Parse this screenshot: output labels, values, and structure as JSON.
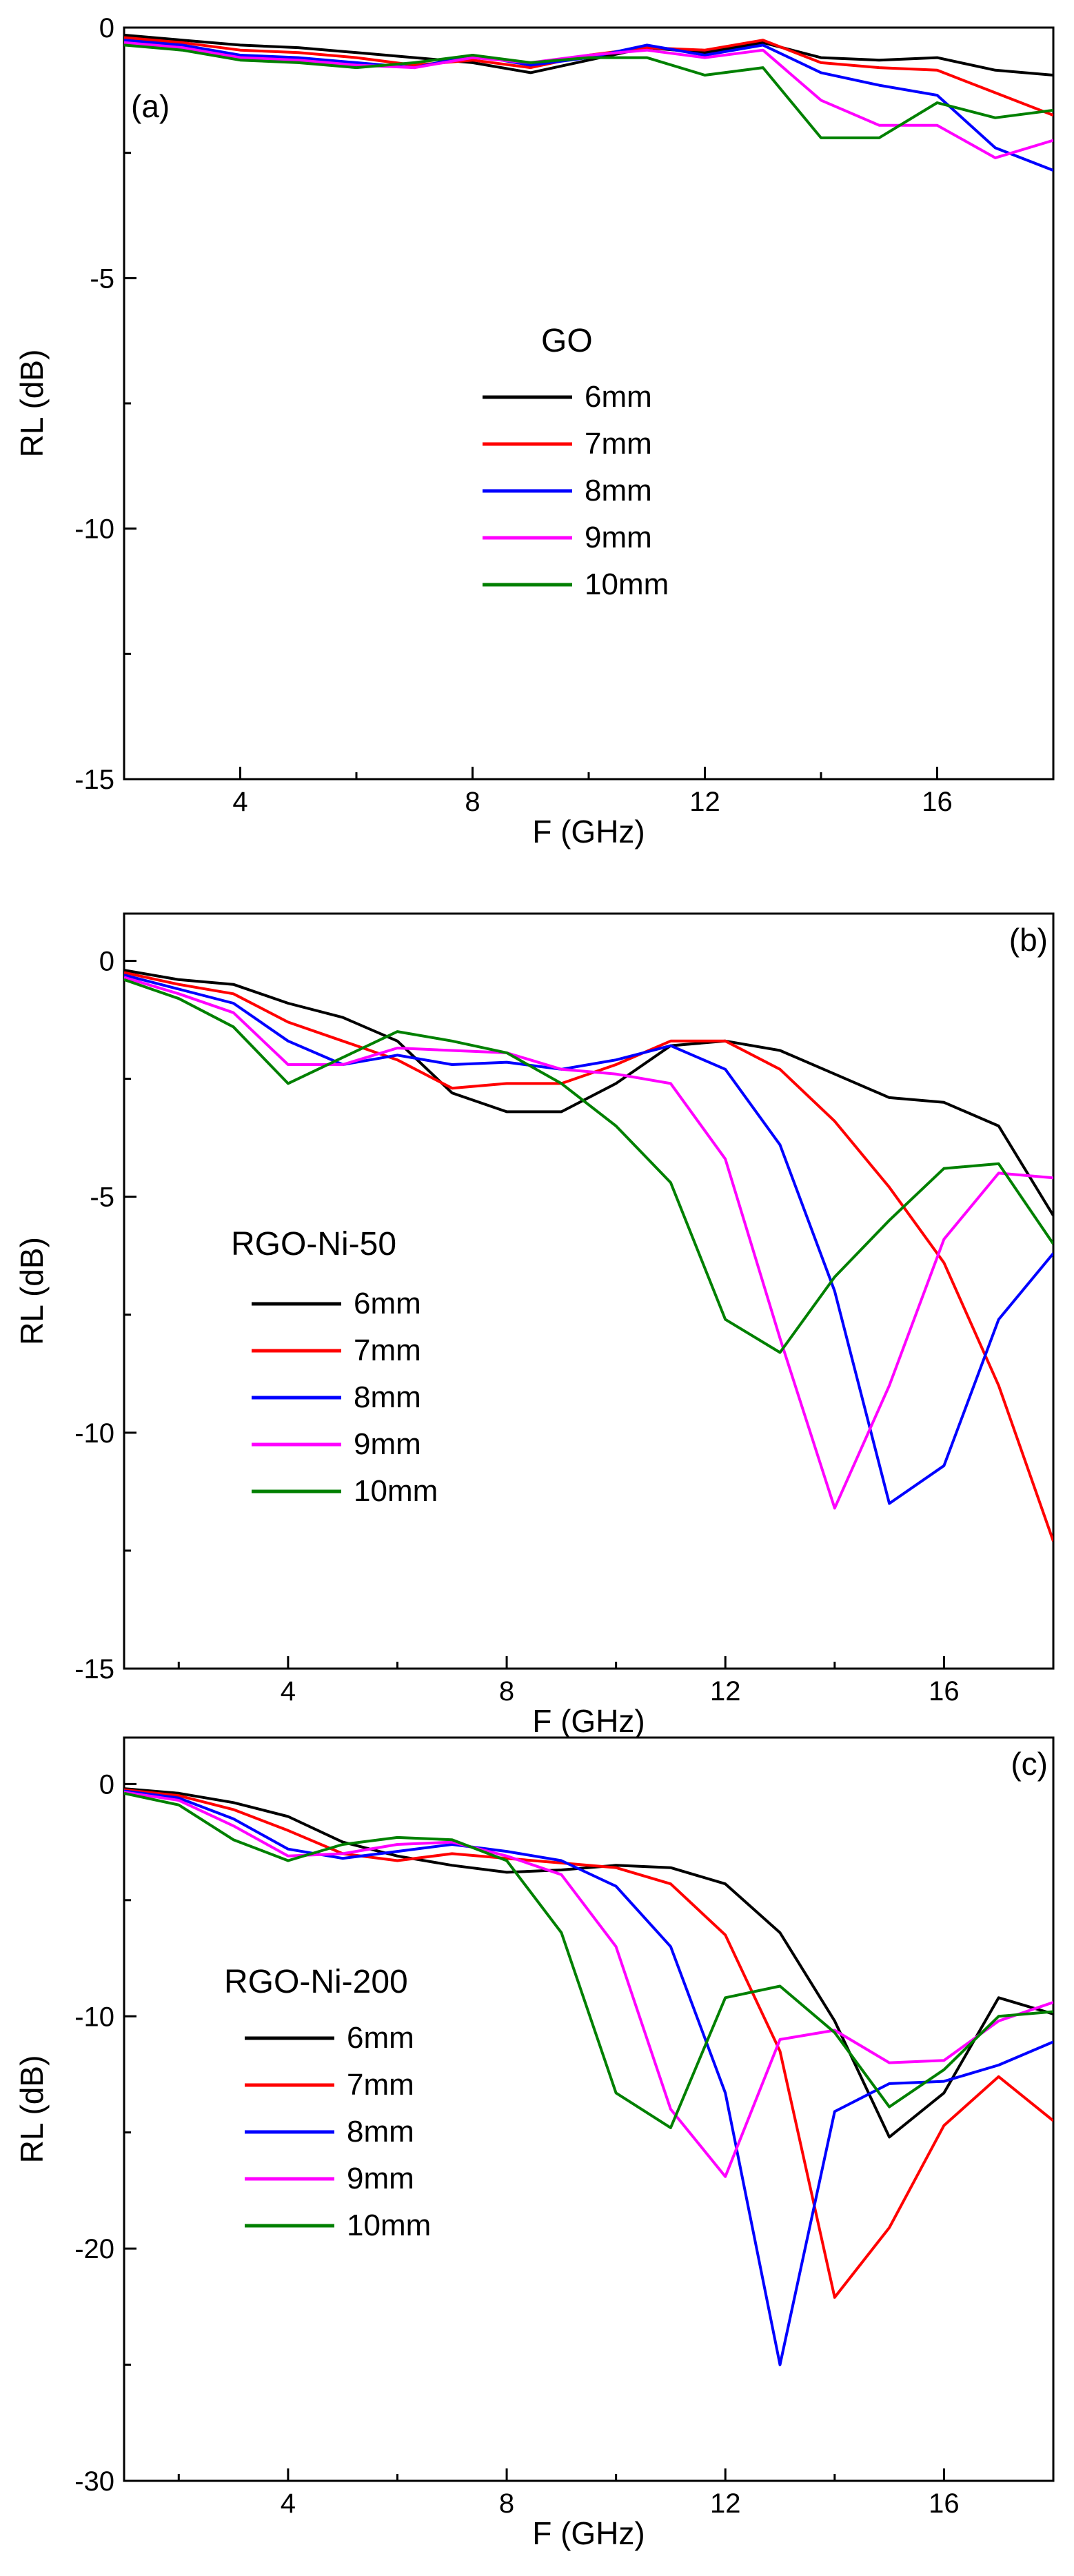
{
  "chart_data": [
    {
      "type": "line",
      "panel_label": "(a)",
      "legend_title": "GO",
      "xlabel": "F (GHz)",
      "ylabel": "RL (dB)",
      "xlim": [
        2,
        18
      ],
      "ylim": [
        -15,
        0
      ],
      "xticks": [
        4,
        8,
        12,
        16
      ],
      "yticks": [
        0,
        -5,
        -10,
        -15
      ],
      "grid": false,
      "legend_position": "center",
      "x": [
        2,
        3,
        4,
        5,
        6,
        7,
        8,
        9,
        10,
        11,
        12,
        13,
        14,
        15,
        16,
        17,
        18
      ],
      "series": [
        {
          "name": "6mm",
          "color": "#000000",
          "values": [
            -0.15,
            -0.25,
            -0.35,
            -0.4,
            -0.5,
            -0.6,
            -0.7,
            -0.9,
            -0.65,
            -0.4,
            -0.5,
            -0.3,
            -0.6,
            -0.65,
            -0.6,
            -0.85,
            -0.95
          ]
        },
        {
          "name": "7mm",
          "color": "#ff0000",
          "values": [
            -0.2,
            -0.3,
            -0.45,
            -0.5,
            -0.6,
            -0.75,
            -0.65,
            -0.8,
            -0.55,
            -0.4,
            -0.45,
            -0.25,
            -0.7,
            -0.8,
            -0.85,
            -1.3,
            -1.75
          ]
        },
        {
          "name": "8mm",
          "color": "#0000ff",
          "values": [
            -0.25,
            -0.35,
            -0.55,
            -0.6,
            -0.7,
            -0.8,
            -0.55,
            -0.75,
            -0.6,
            -0.35,
            -0.55,
            -0.35,
            -0.9,
            -1.15,
            -1.35,
            -2.4,
            -2.85
          ]
        },
        {
          "name": "9mm",
          "color": "#ff00ff",
          "values": [
            -0.3,
            -0.4,
            -0.6,
            -0.65,
            -0.75,
            -0.8,
            -0.6,
            -0.7,
            -0.55,
            -0.45,
            -0.6,
            -0.45,
            -1.45,
            -1.95,
            -1.95,
            -2.6,
            -2.25
          ]
        },
        {
          "name": "10mm",
          "color": "#008000",
          "values": [
            -0.35,
            -0.45,
            -0.65,
            -0.7,
            -0.8,
            -0.7,
            -0.55,
            -0.7,
            -0.6,
            -0.6,
            -0.95,
            -0.8,
            -2.2,
            -2.2,
            -1.5,
            -1.8,
            -1.65
          ]
        }
      ]
    },
    {
      "type": "line",
      "panel_label": "(b)",
      "legend_title": "RGO-Ni-50",
      "xlabel": "F (GHz)",
      "ylabel": "RL (dB)",
      "xlim": [
        1,
        18
      ],
      "ylim": [
        -15,
        1
      ],
      "xticks": [
        4,
        8,
        12,
        16
      ],
      "yticks": [
        0,
        -5,
        -10,
        -15
      ],
      "grid": false,
      "legend_position": "bottom-left",
      "x": [
        1,
        2,
        3,
        4,
        5,
        6,
        7,
        8,
        9,
        10,
        11,
        12,
        13,
        14,
        15,
        16,
        17,
        18
      ],
      "series": [
        {
          "name": "6mm",
          "color": "#000000",
          "values": [
            -0.2,
            -0.4,
            -0.5,
            -0.9,
            -1.2,
            -1.7,
            -2.8,
            -3.2,
            -3.2,
            -2.6,
            -1.8,
            -1.7,
            -1.9,
            -2.4,
            -2.9,
            -3.0,
            -3.5,
            -5.4
          ]
        },
        {
          "name": "7mm",
          "color": "#ff0000",
          "values": [
            -0.25,
            -0.5,
            -0.7,
            -1.3,
            -1.7,
            -2.1,
            -2.7,
            -2.6,
            -2.6,
            -2.2,
            -1.7,
            -1.7,
            -2.3,
            -3.4,
            -4.8,
            -6.4,
            -9.0,
            -12.3
          ]
        },
        {
          "name": "8mm",
          "color": "#0000ff",
          "values": [
            -0.3,
            -0.6,
            -0.9,
            -1.7,
            -2.2,
            -2.0,
            -2.2,
            -2.15,
            -2.3,
            -2.1,
            -1.8,
            -2.3,
            -3.9,
            -7.0,
            -11.5,
            -10.7,
            -7.6,
            -6.2
          ]
        },
        {
          "name": "9mm",
          "color": "#ff00ff",
          "values": [
            -0.35,
            -0.7,
            -1.1,
            -2.2,
            -2.2,
            -1.85,
            -1.9,
            -1.95,
            -2.3,
            -2.4,
            -2.6,
            -4.2,
            -8.0,
            -11.6,
            -9.0,
            -5.9,
            -4.5,
            -4.6
          ]
        },
        {
          "name": "10mm",
          "color": "#008000",
          "values": [
            -0.4,
            -0.8,
            -1.4,
            -2.6,
            -2.05,
            -1.5,
            -1.7,
            -1.95,
            -2.6,
            -3.5,
            -4.7,
            -7.6,
            -8.3,
            -6.7,
            -5.5,
            -4.4,
            -4.3,
            -6.0
          ]
        }
      ]
    },
    {
      "type": "line",
      "panel_label": "(c)",
      "legend_title": "RGO-Ni-200",
      "xlabel": "F (GHz)",
      "ylabel": "RL (dB)",
      "xlim": [
        1,
        18
      ],
      "ylim": [
        -30,
        2
      ],
      "xticks": [
        4,
        8,
        12,
        16
      ],
      "yticks": [
        0,
        -10,
        -20,
        -30
      ],
      "grid": false,
      "legend_position": "bottom-left",
      "x": [
        1,
        2,
        3,
        4,
        5,
        6,
        7,
        8,
        9,
        10,
        11,
        12,
        13,
        14,
        15,
        16,
        17,
        18
      ],
      "series": [
        {
          "name": "6mm",
          "color": "#000000",
          "values": [
            -0.2,
            -0.4,
            -0.8,
            -1.4,
            -2.5,
            -3.1,
            -3.5,
            -3.8,
            -3.7,
            -3.5,
            -3.6,
            -4.3,
            -6.4,
            -10.2,
            -15.2,
            -13.3,
            -9.2,
            -9.9
          ]
        },
        {
          "name": "7mm",
          "color": "#ff0000",
          "values": [
            -0.25,
            -0.5,
            -1.1,
            -2.0,
            -3.0,
            -3.3,
            -3.0,
            -3.2,
            -3.4,
            -3.6,
            -4.3,
            -6.5,
            -11.5,
            -22.1,
            -19.1,
            -14.7,
            -12.6,
            -14.5
          ]
        },
        {
          "name": "8mm",
          "color": "#0000ff",
          "values": [
            -0.3,
            -0.6,
            -1.5,
            -2.8,
            -3.2,
            -2.9,
            -2.6,
            -2.9,
            -3.3,
            -4.4,
            -7.0,
            -13.3,
            -25.0,
            -14.1,
            -12.9,
            -12.8,
            -12.1,
            -11.1
          ]
        },
        {
          "name": "9mm",
          "color": "#ff00ff",
          "values": [
            -0.35,
            -0.7,
            -1.8,
            -3.1,
            -3.0,
            -2.6,
            -2.5,
            -3.1,
            -3.9,
            -7.0,
            -14.0,
            -16.9,
            -11.0,
            -10.6,
            -12.0,
            -11.9,
            -10.2,
            -9.4
          ]
        },
        {
          "name": "10mm",
          "color": "#008000",
          "values": [
            -0.4,
            -0.9,
            -2.4,
            -3.3,
            -2.6,
            -2.3,
            -2.4,
            -3.3,
            -6.4,
            -13.3,
            -14.8,
            -9.2,
            -8.7,
            -10.7,
            -13.9,
            -12.3,
            -10.0,
            -9.8
          ]
        }
      ]
    }
  ]
}
